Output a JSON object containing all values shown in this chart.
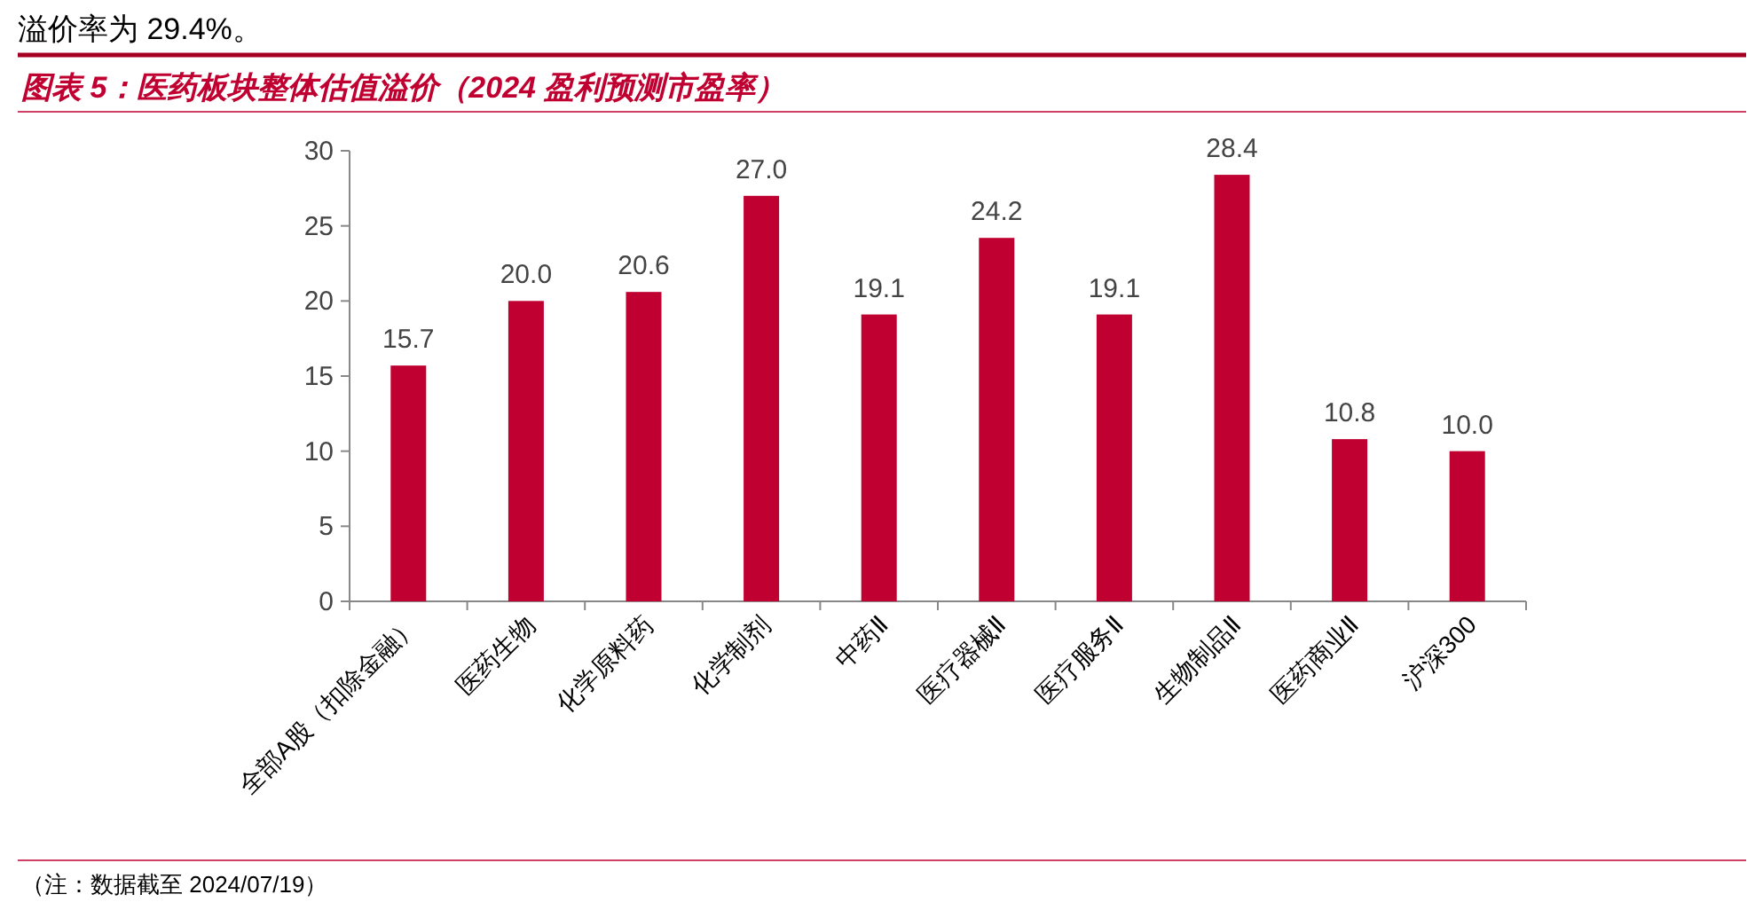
{
  "chart_data": {
    "type": "bar",
    "title": "图表 5：医药板块整体估值溢价（2024 盈利预测市盈率）",
    "categories": [
      "全部A股（扣除金融）",
      "医药生物",
      "化学原料药",
      "化学制剂",
      "中药Ⅱ",
      "医疗器械Ⅱ",
      "医疗服务Ⅱ",
      "生物制品Ⅱ",
      "医药商业Ⅱ",
      "沪深300"
    ],
    "values": [
      15.7,
      20.0,
      20.6,
      27.0,
      19.1,
      24.2,
      19.1,
      28.4,
      10.8,
      10.0
    ],
    "value_labels": [
      "15.7",
      "20.0",
      "20.6",
      "27.0",
      "19.1",
      "24.2",
      "19.1",
      "28.4",
      "10.8",
      "10.0"
    ],
    "color": "#c00030",
    "ylim": [
      0,
      30
    ],
    "yticks": [
      0,
      5,
      10,
      15,
      20,
      25,
      30
    ],
    "annotations": [
      "溢价率为 29.4%。",
      "（注：数据截至 2024/07/19）"
    ]
  }
}
